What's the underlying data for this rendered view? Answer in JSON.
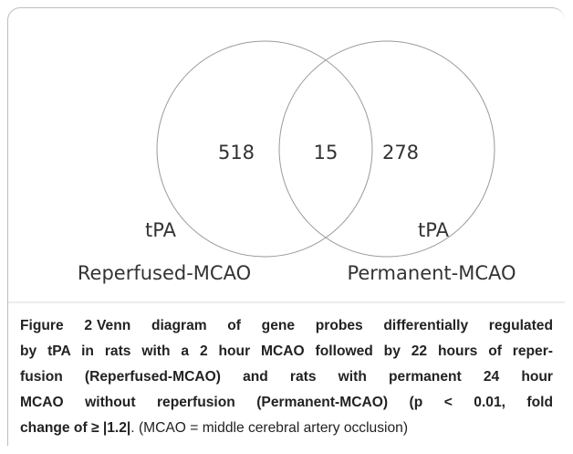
{
  "diagram": {
    "sets": [
      {
        "name": "tPA",
        "label": "Reperfused-MCAO",
        "only": "518"
      },
      {
        "name": "tPA",
        "label": "Permanent-MCAO",
        "only": "278"
      }
    ],
    "intersection": "15"
  },
  "caption": {
    "figure": "Figure 2",
    "lines": [
      "Venn diagram of gene probes differentially regulated",
      "by tPA in rats with a 2 hour MCAO followed by 22 hours of reper-",
      "fusion (Reperfused-MCAO) and rats with permanent 24 hour",
      "MCAO without reperfusion (Permanent-MCAO) (p < 0.01, fold",
      "change of ≥ |1.2|"
    ],
    "tail": ". (MCAO = middle cerebral artery occlusion)"
  }
}
